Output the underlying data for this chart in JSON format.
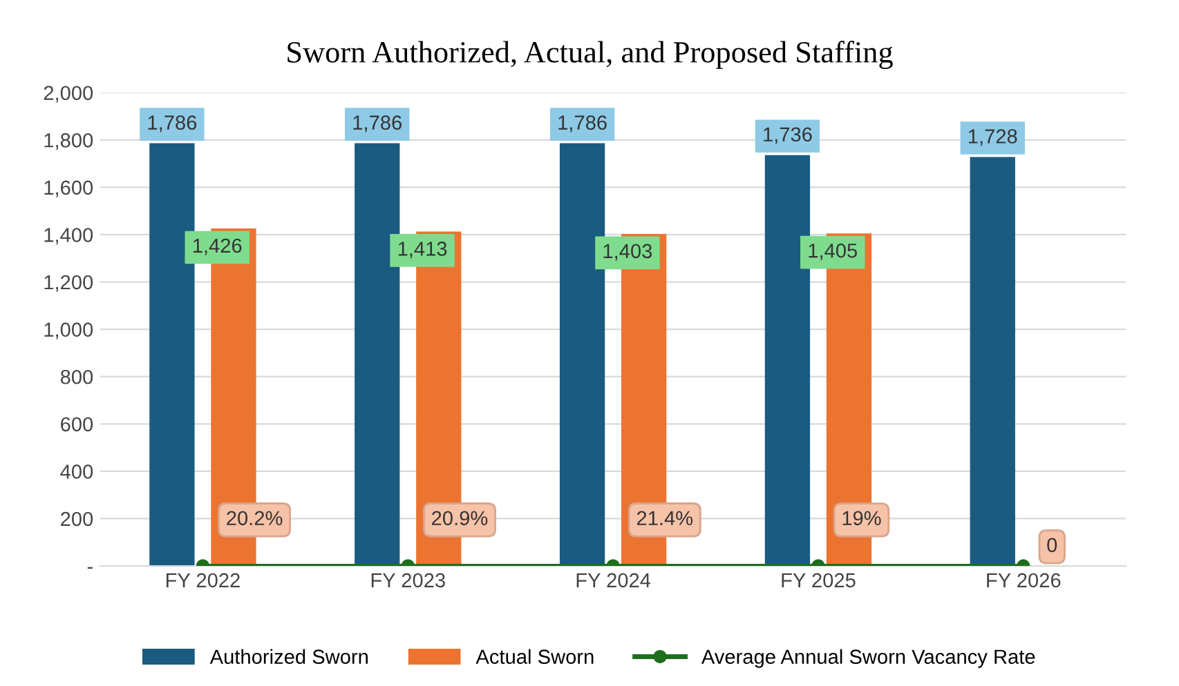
{
  "chart_data": {
    "type": "bar",
    "title": "Sworn Authorized, Actual, and Proposed Staffing",
    "categories": [
      "FY 2022",
      "FY 2023",
      "FY 2024",
      "FY 2025",
      "FY 2026"
    ],
    "series": [
      {
        "name": "Authorized Sworn",
        "color": "#1a5b80",
        "values": [
          1786,
          1786,
          1786,
          1736,
          1728
        ],
        "value_labels": [
          "1,786",
          "1,786",
          "1,786",
          "1,736",
          "1,728"
        ]
      },
      {
        "name": "Actual Sworn",
        "color": "#ec7431",
        "values": [
          1426,
          1413,
          1403,
          1405,
          null
        ],
        "value_labels": [
          "1,426",
          "1,413",
          "1,403",
          "1,405",
          null
        ]
      },
      {
        "name": "Average Annual Sworn Vacancy Rate",
        "type": "line",
        "color": "#1e6e1e",
        "marker": "circle",
        "values": [
          0.202,
          0.209,
          0.214,
          0.19,
          0
        ],
        "value_labels": [
          "20.2%",
          "20.9%",
          "21.4%",
          "19%",
          "0"
        ]
      }
    ],
    "ylim": [
      0,
      2000
    ],
    "yticks": [
      {
        "value": 0,
        "label": "-"
      },
      {
        "value": 200,
        "label": "200"
      },
      {
        "value": 400,
        "label": "400"
      },
      {
        "value": 600,
        "label": "600"
      },
      {
        "value": 800,
        "label": "800"
      },
      {
        "value": 1000,
        "label": "1,000"
      },
      {
        "value": 1200,
        "label": "1,200"
      },
      {
        "value": 1400,
        "label": "1,400"
      },
      {
        "value": 1600,
        "label": "1,600"
      },
      {
        "value": 1800,
        "label": "1,800"
      },
      {
        "value": 2000,
        "label": "2,000"
      }
    ],
    "grid": "y",
    "legend": "bottom"
  }
}
